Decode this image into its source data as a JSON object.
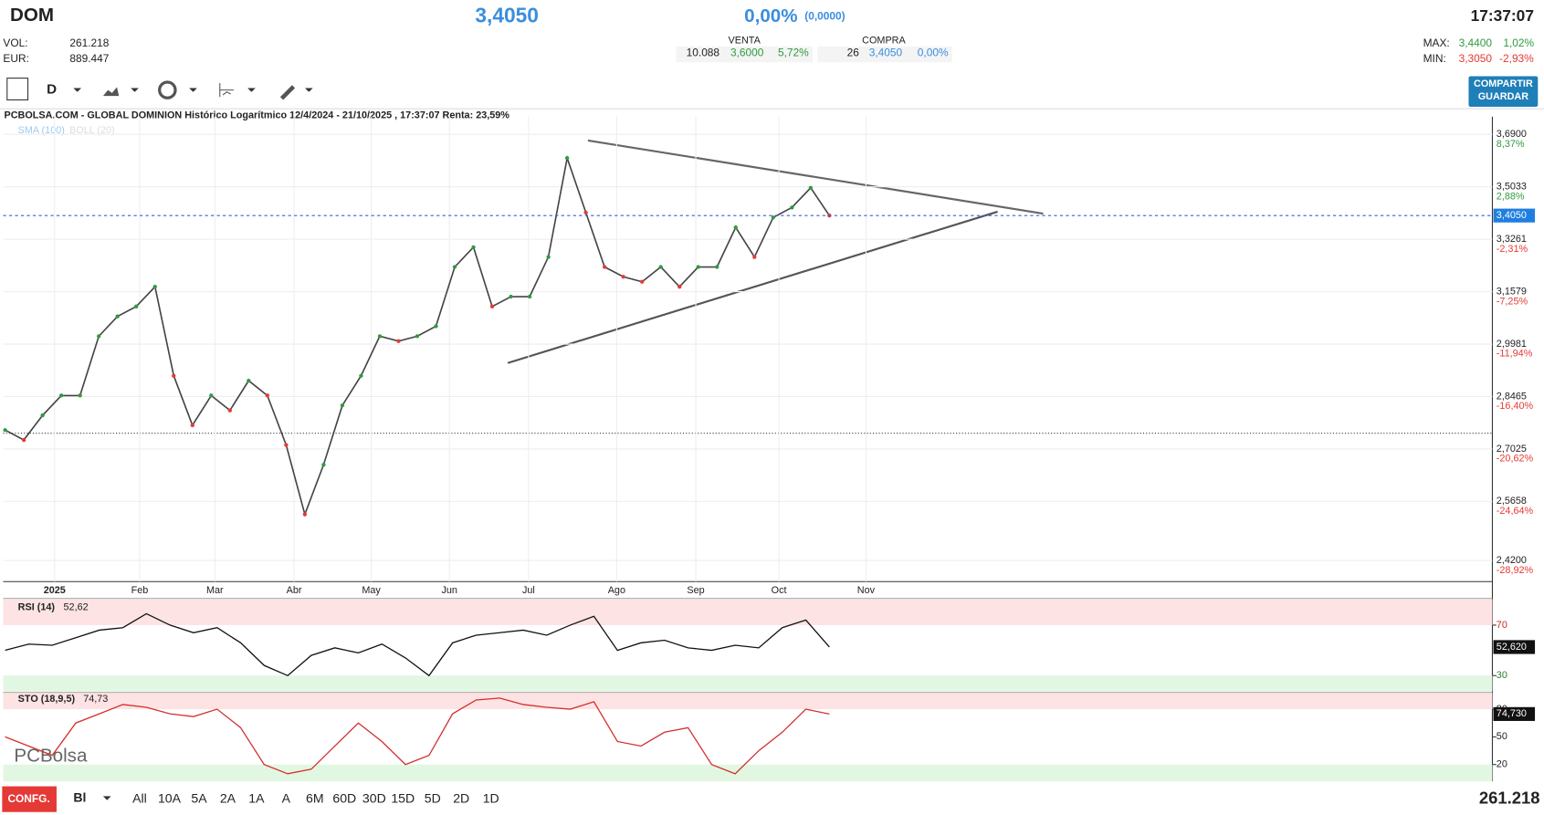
{
  "header": {
    "ticker": "DOM",
    "price": "3,4050",
    "change_pct": "0,00%",
    "change_abs": "(0,0000)",
    "time": "17:37:07",
    "vol_label": "VOL:",
    "vol": "261.218",
    "eur_label": "EUR:",
    "eur": "889.447",
    "venta_label": "VENTA",
    "venta_qty": "10.088",
    "venta_price": "3,6000",
    "venta_pct": "5,72%",
    "compra_label": "COMPRA",
    "compra_qty": "26",
    "compra_price": "3,4050",
    "compra_pct": "0,00%",
    "max_label": "MAX:",
    "max_price": "3,4400",
    "max_pct": "1,02%",
    "min_label": "MIN:",
    "min_price": "3,3050",
    "min_pct": "-2,93%"
  },
  "toolbar": {
    "period": "D",
    "share": "COMPARTIR",
    "save": "GUARDAR"
  },
  "chart": {
    "title": "PCBOLSA.COM - GLOBAL DOMINION Histórico Logarítmico 12/4/2024 - 21/10/2025 , 17:37:07 Renta: 23,59%",
    "sma": "SMA (100)",
    "boll": "BOLL (20)",
    "current_tag": "3,4050",
    "months": [
      "2025",
      "Feb",
      "Mar",
      "Abr",
      "May",
      "Jun",
      "Jul",
      "Ago",
      "Sep",
      "Oct",
      "Nov"
    ],
    "ytick_changes": [
      "8,37%",
      "2,88%",
      "-2,31%",
      "-7,25%",
      "-11,94%",
      "-16,40%",
      "-20,62%",
      "-24,64%",
      "-28,92%"
    ],
    "rsi_label": "RSI (14)",
    "rsi_value": "52,62",
    "rsi_tag": "52,620",
    "sto_label": "STO (18,9,5)",
    "sto_value": "74,73",
    "sto_tag": "74,730",
    "logo": "PCBolsa"
  },
  "footer": {
    "config": "CONFG.",
    "mode": "Bl",
    "ranges": [
      "All",
      "10A",
      "5A",
      "2A",
      "1A",
      "A",
      "6M",
      "60D",
      "30D",
      "15D",
      "5D",
      "2D",
      "1D"
    ],
    "volume": "261.218"
  },
  "chart_data": [
    {
      "type": "line",
      "color": "#444444",
      "log_scale": true,
      "grid": true,
      "ylim": [
        2.37,
        3.755
      ],
      "yticks": [
        {
          "value": 3.69,
          "label": "3,6900"
        },
        {
          "value": 3.5033,
          "label": "3,5033"
        },
        {
          "value": 3.3261,
          "label": "3,3261"
        },
        {
          "value": 3.1579,
          "label": "3,1579"
        },
        {
          "value": 2.9981,
          "label": "2,9981"
        },
        {
          "value": 2.8465,
          "label": "2,8465"
        },
        {
          "value": 2.7025,
          "label": "2,7025"
        },
        {
          "value": 2.5658,
          "label": "2,5658"
        },
        {
          "value": 2.42,
          "label": "2,4200"
        }
      ],
      "values": [
        2.7535,
        2.7266,
        2.794,
        2.8494,
        2.8494,
        3.0217,
        3.0815,
        3.1118,
        3.1733,
        2.9055,
        2.7667,
        2.8494,
        2.8077,
        2.8915,
        2.8494,
        2.7133,
        2.5332,
        2.6605,
        2.8214,
        2.9055,
        3.0217,
        3.007,
        3.0217,
        3.0516,
        3.2361,
        3.2999,
        3.1118,
        3.1424,
        3.1424,
        3.2682,
        3.6044,
        3.4151,
        3.2361,
        3.2048,
        3.1889,
        3.2361,
        3.1733,
        3.2361,
        3.2361,
        3.3653,
        3.2682,
        3.3985,
        3.4321,
        3.4999,
        3.405
      ]
    },
    {
      "type": "line",
      "color": "#111111",
      "ylim": [
        17.5,
        90.4
      ],
      "yticks": [
        70,
        30
      ],
      "values": [
        50,
        55,
        54,
        60,
        66,
        68,
        79,
        70,
        64,
        68,
        56,
        38,
        30,
        46,
        52,
        48,
        55,
        44,
        30,
        56,
        62,
        64,
        66,
        62,
        70,
        77,
        50,
        56,
        58,
        52,
        50,
        54,
        52,
        68,
        74,
        52.62
      ]
    },
    {
      "type": "line",
      "color": "#d32f2f",
      "ylim": [
        1.8,
        98.2
      ],
      "yticks": [
        80,
        50,
        20
      ],
      "values": [
        50,
        40,
        30,
        65,
        75,
        85,
        82,
        75,
        72,
        80,
        60,
        20,
        10,
        15,
        40,
        65,
        45,
        20,
        30,
        75,
        90,
        92,
        85,
        82,
        80,
        88,
        45,
        40,
        55,
        60,
        20,
        10,
        35,
        55,
        80,
        74.73
      ]
    }
  ]
}
